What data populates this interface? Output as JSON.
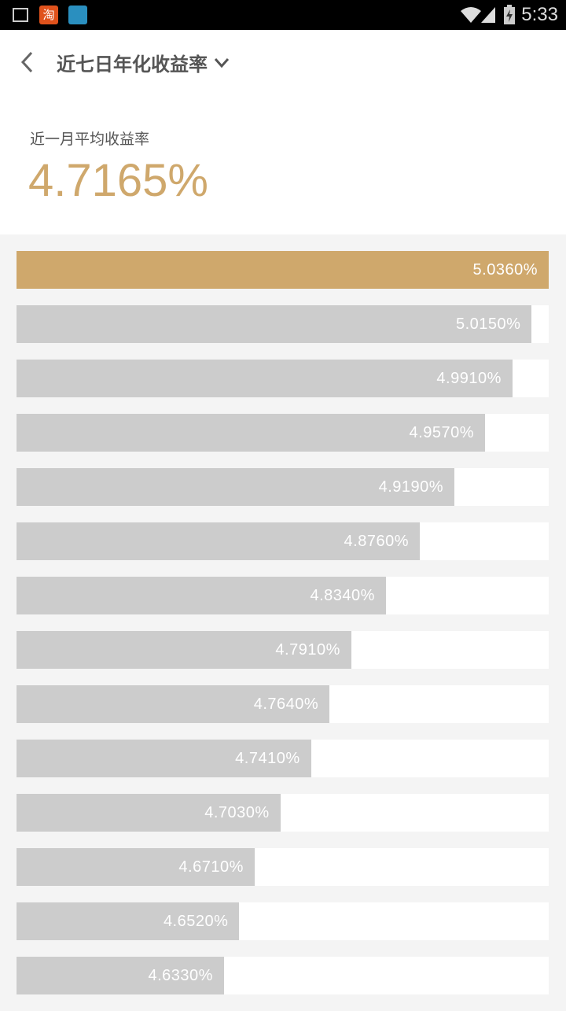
{
  "status_bar": {
    "time": "5:33",
    "icons": [
      "gallery-icon",
      "taobao-icon",
      "nox-icon",
      "wifi-icon",
      "signal-icon",
      "battery-charging-icon"
    ]
  },
  "header": {
    "title": "近七日年化收益率",
    "back_icon": "chevron-left-icon",
    "dropdown_icon": "chevron-down-icon"
  },
  "summary": {
    "label": "近一月平均收益率",
    "value": "4.7165%"
  },
  "colors": {
    "accent": "#cfa86c",
    "bar": "#cccccc",
    "background": "#f4f4f4"
  },
  "chart_data": {
    "type": "bar",
    "orientation": "horizontal",
    "values": [
      5.036,
      5.015,
      4.991,
      4.957,
      4.919,
      4.876,
      4.834,
      4.791,
      4.764,
      4.741,
      4.703,
      4.671,
      4.652,
      4.633
    ],
    "labels": [
      "5.0360%",
      "5.0150%",
      "4.9910%",
      "4.9570%",
      "4.9190%",
      "4.8760%",
      "4.8340%",
      "4.7910%",
      "4.7640%",
      "4.7410%",
      "4.7030%",
      "4.6710%",
      "4.6520%",
      "4.6330%"
    ],
    "highlight_index": 0
  }
}
